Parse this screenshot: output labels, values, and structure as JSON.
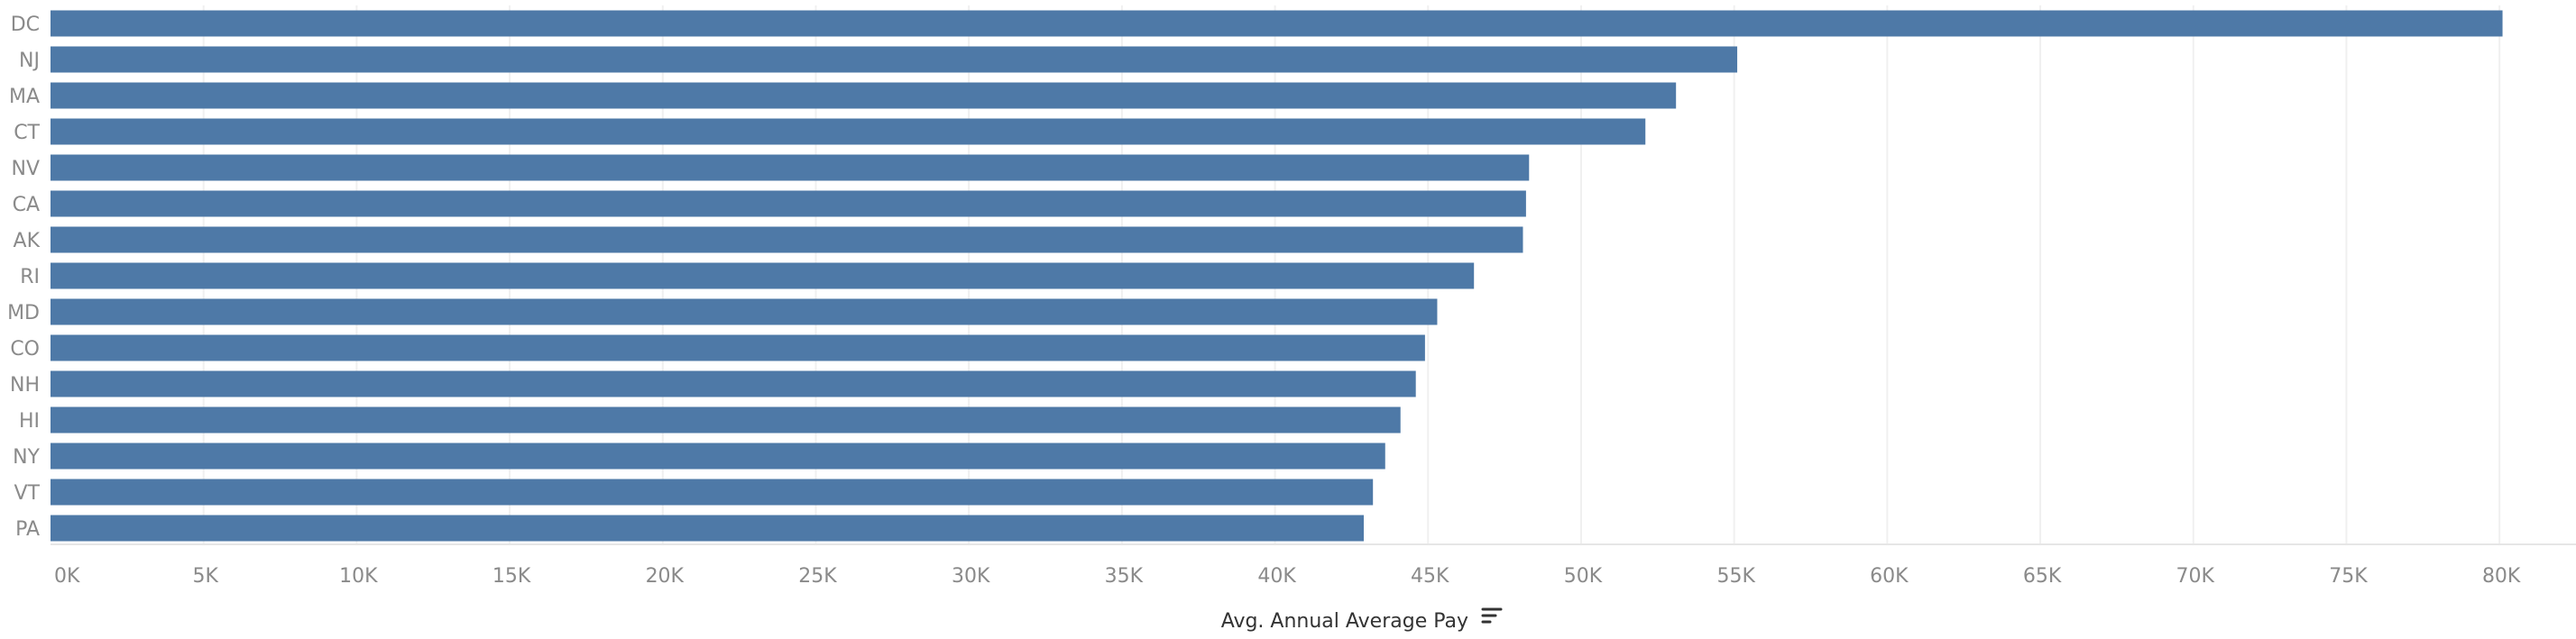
{
  "chart_data": {
    "type": "bar",
    "orientation": "horizontal",
    "categories": [
      "DC",
      "NJ",
      "MA",
      "CT",
      "NV",
      "CA",
      "AK",
      "RI",
      "MD",
      "CO",
      "NH",
      "HI",
      "NY",
      "VT",
      "PA"
    ],
    "values": [
      80100,
      55100,
      53100,
      52100,
      48300,
      48200,
      48100,
      46500,
      45300,
      44900,
      44600,
      44100,
      43600,
      43200,
      42900
    ],
    "xlim": [
      0,
      82500
    ],
    "x_ticks": [
      0,
      5000,
      10000,
      15000,
      20000,
      25000,
      30000,
      35000,
      40000,
      45000,
      50000,
      55000,
      60000,
      65000,
      70000,
      75000,
      80000
    ],
    "x_tick_labels": [
      "0K",
      "5K",
      "10K",
      "15K",
      "20K",
      "25K",
      "30K",
      "35K",
      "40K",
      "45K",
      "50K",
      "55K",
      "60K",
      "65K",
      "70K",
      "75K",
      "80K"
    ],
    "xlabel": "Avg. Annual Average Pay",
    "ylabel": "",
    "title": "",
    "grid": true,
    "bar_color": "#4e79a7",
    "axis_title_icon": "sort-descending-icon"
  }
}
